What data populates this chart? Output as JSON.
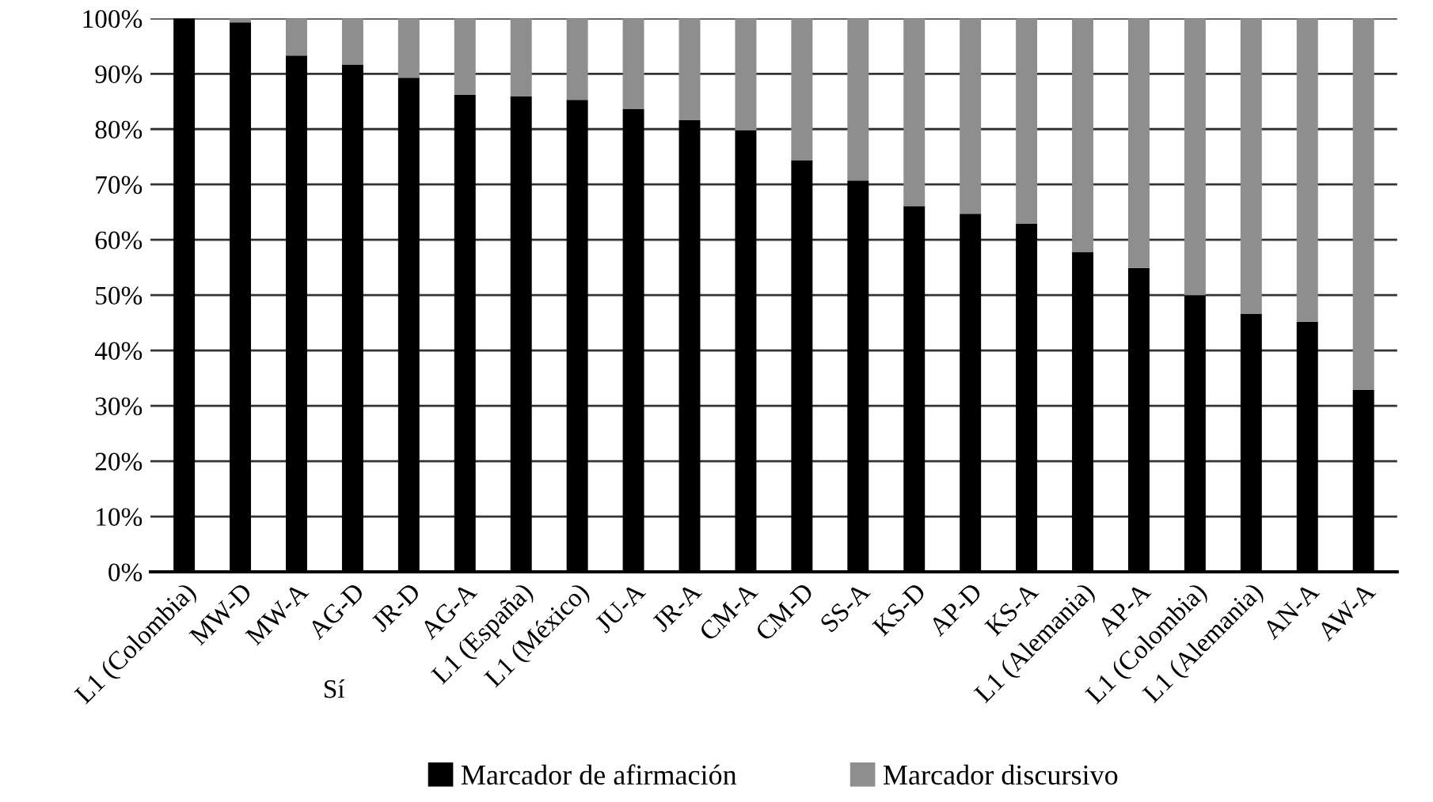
{
  "chart_data": {
    "type": "bar",
    "stacked": true,
    "categories": [
      "L1 (Colombia)",
      "MW-D",
      "MW-A",
      "AG-D",
      "JR-D",
      "AG-A",
      "L1 (España)",
      "L1 (México)",
      "JU-A",
      "JR-A",
      "CM-A",
      "CM-D",
      "SS-A",
      "KS-D",
      "AP-D",
      "KS-A",
      "L1 (Alemania)",
      "AP-A",
      "L1 (Colombia)",
      "L1 (Alemania)",
      "AN-A",
      "AW-A"
    ],
    "series": [
      {
        "name": "Marcador de afirmación",
        "color": "#000000",
        "values": [
          100,
          99.3,
          93.3,
          91.6,
          89.3,
          86.2,
          85.9,
          85.3,
          83.6,
          81.6,
          79.8,
          74.4,
          70.7,
          66.1,
          64.7,
          62.9,
          57.8,
          54.9,
          50,
          46.6,
          45.2,
          32.9
        ]
      },
      {
        "name": "Marcador discursivo",
        "color": "#8e8e8e",
        "values": [
          0,
          0.7,
          6.7,
          8.4,
          10.7,
          13.8,
          14.1,
          14.7,
          16.4,
          18.4,
          20.2,
          25.6,
          29.3,
          33.9,
          35.3,
          37.1,
          42.2,
          45.1,
          50,
          53.4,
          54.8,
          67.1
        ]
      }
    ],
    "ylim": [
      0,
      100
    ],
    "yticks": [
      {
        "value": 0,
        "label": "0%"
      },
      {
        "value": 10,
        "label": "10%"
      },
      {
        "value": 20,
        "label": "20%"
      },
      {
        "value": 30,
        "label": "30%"
      },
      {
        "value": 40,
        "label": "40%"
      },
      {
        "value": 50,
        "label": "50%"
      },
      {
        "value": 60,
        "label": "60%"
      },
      {
        "value": 70,
        "label": "70%"
      },
      {
        "value": 80,
        "label": "80%"
      },
      {
        "value": 90,
        "label": "90%"
      },
      {
        "value": 100,
        "label": "100%"
      }
    ],
    "grid": "y",
    "legend": "bottom",
    "annotations": [
      "Sí"
    ]
  }
}
